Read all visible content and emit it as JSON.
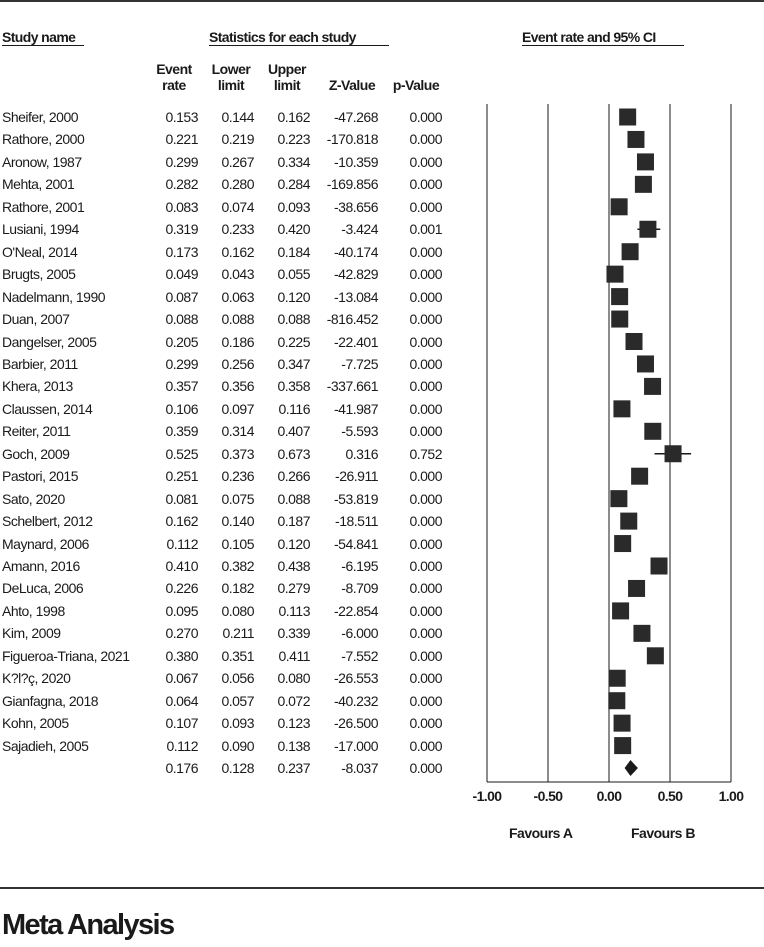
{
  "headers": {
    "study_name": "Study name",
    "statistics": "Statistics for each study",
    "forest": "Event rate and 95% CI",
    "col_event_rate": [
      "Event",
      "rate"
    ],
    "col_lower_limit": [
      "Lower",
      "limit"
    ],
    "col_upper_limit": [
      "Upper",
      "limit"
    ],
    "col_z_value": "Z-Value",
    "col_p_value": "p-Value"
  },
  "footer_title": "Meta Analysis",
  "chart_data": {
    "type": "forest",
    "title": "Event rate and 95% CI",
    "xlim": [
      -1.0,
      1.0
    ],
    "x_ticks": [
      -1.0,
      -0.5,
      0.0,
      0.5,
      1.0
    ],
    "x_tick_labels": [
      "-1.00",
      "-0.50",
      "0.00",
      "0.50",
      "1.00"
    ],
    "favours_left": "Favours A",
    "favours_right": "Favours B",
    "studies": [
      {
        "name": "Sheifer, 2000",
        "event_rate": "0.153",
        "lower": "0.144",
        "upper": "0.162",
        "z": "-47.268",
        "p": "0.000"
      },
      {
        "name": "Rathore, 2000",
        "event_rate": "0.221",
        "lower": "0.219",
        "upper": "0.223",
        "z": "-170.818",
        "p": "0.000"
      },
      {
        "name": "Aronow, 1987",
        "event_rate": "0.299",
        "lower": "0.267",
        "upper": "0.334",
        "z": "-10.359",
        "p": "0.000"
      },
      {
        "name": "Mehta, 2001",
        "event_rate": "0.282",
        "lower": "0.280",
        "upper": "0.284",
        "z": "-169.856",
        "p": "0.000"
      },
      {
        "name": "Rathore, 2001",
        "event_rate": "0.083",
        "lower": "0.074",
        "upper": "0.093",
        "z": "-38.656",
        "p": "0.000"
      },
      {
        "name": "Lusiani, 1994",
        "event_rate": "0.319",
        "lower": "0.233",
        "upper": "0.420",
        "z": "-3.424",
        "p": "0.001"
      },
      {
        "name": "O'Neal, 2014",
        "event_rate": "0.173",
        "lower": "0.162",
        "upper": "0.184",
        "z": "-40.174",
        "p": "0.000"
      },
      {
        "name": "Brugts, 2005",
        "event_rate": "0.049",
        "lower": "0.043",
        "upper": "0.055",
        "z": "-42.829",
        "p": "0.000"
      },
      {
        "name": "Nadelmann, 1990",
        "event_rate": "0.087",
        "lower": "0.063",
        "upper": "0.120",
        "z": "-13.084",
        "p": "0.000"
      },
      {
        "name": "Duan, 2007",
        "event_rate": "0.088",
        "lower": "0.088",
        "upper": "0.088",
        "z": "-816.452",
        "p": "0.000"
      },
      {
        "name": "Dangelser, 2005",
        "event_rate": "0.205",
        "lower": "0.186",
        "upper": "0.225",
        "z": "-22.401",
        "p": "0.000"
      },
      {
        "name": "Barbier, 2011",
        "event_rate": "0.299",
        "lower": "0.256",
        "upper": "0.347",
        "z": "-7.725",
        "p": "0.000"
      },
      {
        "name": "Khera, 2013",
        "event_rate": "0.357",
        "lower": "0.356",
        "upper": "0.358",
        "z": "-337.661",
        "p": "0.000"
      },
      {
        "name": "Claussen, 2014",
        "event_rate": "0.106",
        "lower": "0.097",
        "upper": "0.116",
        "z": "-41.987",
        "p": "0.000"
      },
      {
        "name": "Reiter, 2011",
        "event_rate": "0.359",
        "lower": "0.314",
        "upper": "0.407",
        "z": "-5.593",
        "p": "0.000"
      },
      {
        "name": "Goch, 2009",
        "event_rate": "0.525",
        "lower": "0.373",
        "upper": "0.673",
        "z": "0.316",
        "p": "0.752"
      },
      {
        "name": "Pastori, 2015",
        "event_rate": "0.251",
        "lower": "0.236",
        "upper": "0.266",
        "z": "-26.911",
        "p": "0.000"
      },
      {
        "name": "Sato, 2020",
        "event_rate": "0.081",
        "lower": "0.075",
        "upper": "0.088",
        "z": "-53.819",
        "p": "0.000"
      },
      {
        "name": "Schelbert, 2012",
        "event_rate": "0.162",
        "lower": "0.140",
        "upper": "0.187",
        "z": "-18.511",
        "p": "0.000"
      },
      {
        "name": "Maynard, 2006",
        "event_rate": "0.112",
        "lower": "0.105",
        "upper": "0.120",
        "z": "-54.841",
        "p": "0.000"
      },
      {
        "name": "Amann, 2016",
        "event_rate": "0.410",
        "lower": "0.382",
        "upper": "0.438",
        "z": "-6.195",
        "p": "0.000"
      },
      {
        "name": "DeLuca, 2006",
        "event_rate": "0.226",
        "lower": "0.182",
        "upper": "0.279",
        "z": "-8.709",
        "p": "0.000"
      },
      {
        "name": "Ahto, 1998",
        "event_rate": "0.095",
        "lower": "0.080",
        "upper": "0.113",
        "z": "-22.854",
        "p": "0.000"
      },
      {
        "name": "Kim, 2009",
        "event_rate": "0.270",
        "lower": "0.211",
        "upper": "0.339",
        "z": "-6.000",
        "p": "0.000"
      },
      {
        "name": "Figueroa-Triana, 2021",
        "event_rate": "0.380",
        "lower": "0.351",
        "upper": "0.411",
        "z": "-7.552",
        "p": "0.000"
      },
      {
        "name": "K?l?ç, 2020",
        "event_rate": "0.067",
        "lower": "0.056",
        "upper": "0.080",
        "z": "-26.553",
        "p": "0.000"
      },
      {
        "name": "Gianfagna, 2018",
        "event_rate": "0.064",
        "lower": "0.057",
        "upper": "0.072",
        "z": "-40.232",
        "p": "0.000"
      },
      {
        "name": "Kohn, 2005",
        "event_rate": "0.107",
        "lower": "0.093",
        "upper": "0.123",
        "z": "-26.500",
        "p": "0.000"
      },
      {
        "name": "Sajadieh, 2005",
        "event_rate": "0.112",
        "lower": "0.090",
        "upper": "0.138",
        "z": "-17.000",
        "p": "0.000"
      }
    ],
    "summary": {
      "name": "",
      "event_rate": "0.176",
      "lower": "0.128",
      "upper": "0.237",
      "z": "-8.037",
      "p": "0.000"
    }
  }
}
